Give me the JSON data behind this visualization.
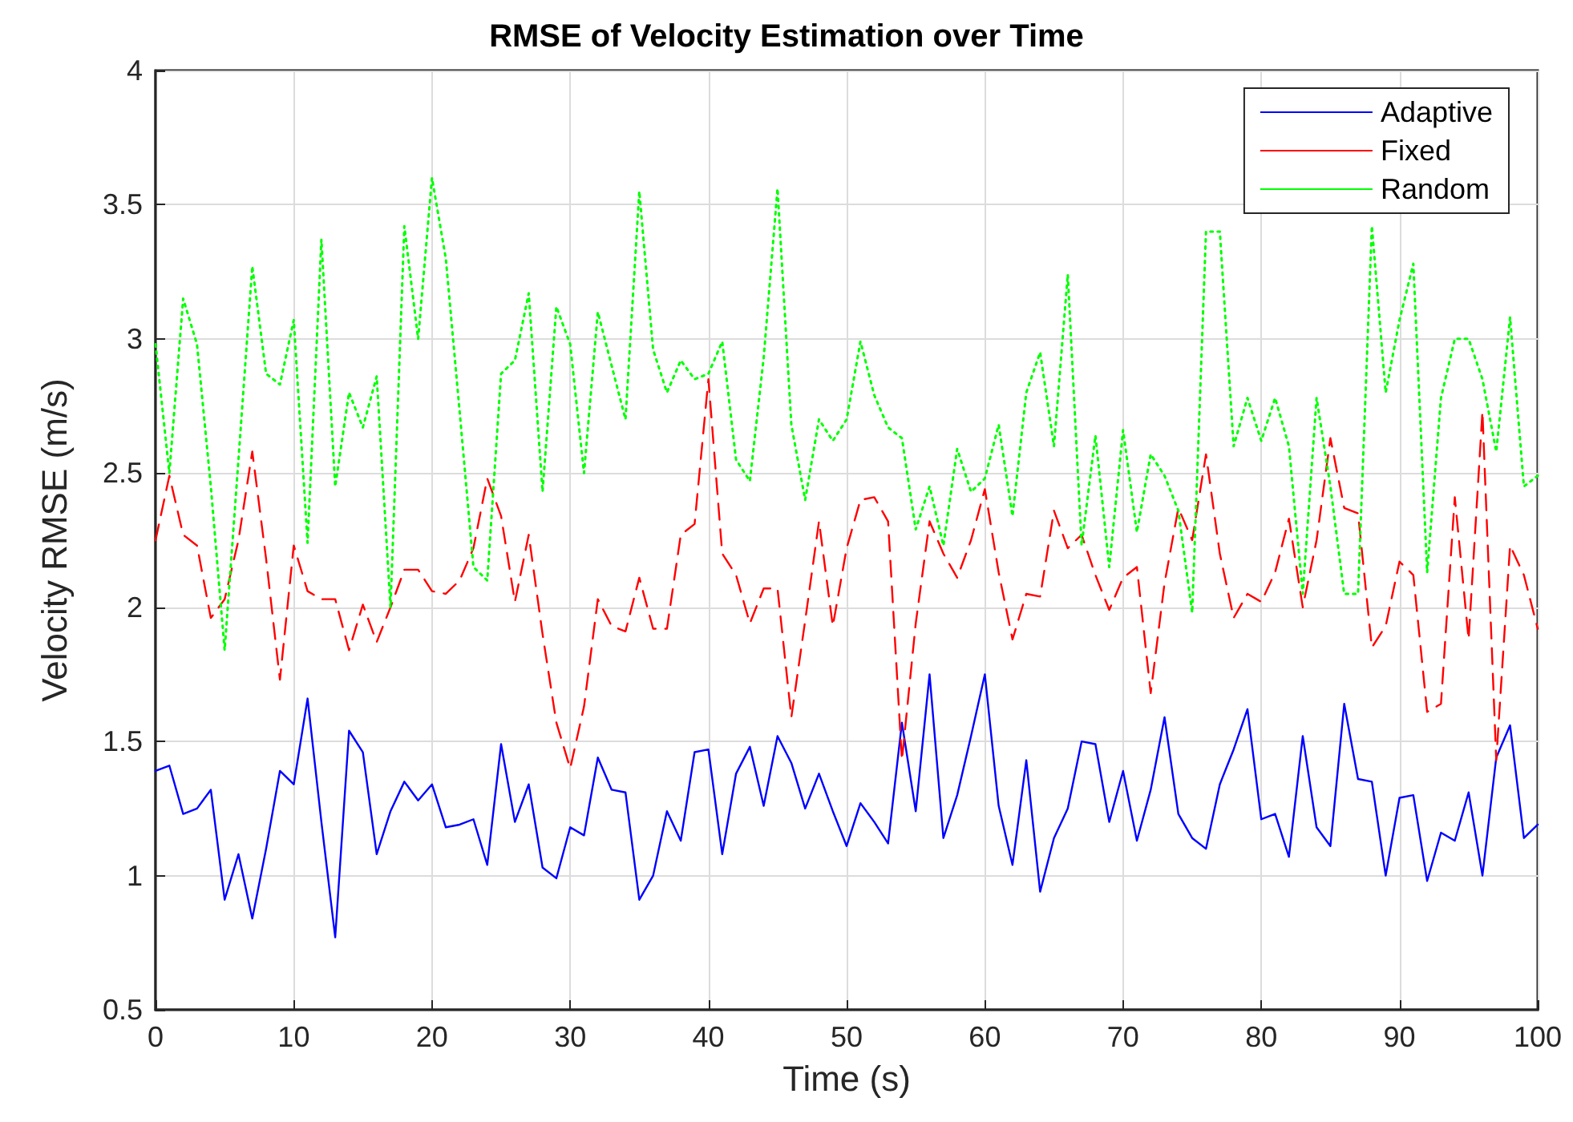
{
  "chart_data": {
    "type": "line",
    "title": "RMSE of Velocity Estimation over Time",
    "xlabel": "Time (s)",
    "ylabel": "Velocity RMSE (m/s)",
    "x": [
      0,
      1,
      2,
      3,
      4,
      5,
      6,
      7,
      8,
      9,
      10,
      11,
      12,
      13,
      14,
      15,
      16,
      17,
      18,
      19,
      20,
      21,
      22,
      23,
      24,
      25,
      26,
      27,
      28,
      29,
      30,
      31,
      32,
      33,
      34,
      35,
      36,
      37,
      38,
      39,
      40,
      41,
      42,
      43,
      44,
      45,
      46,
      47,
      48,
      49,
      50,
      51,
      52,
      53,
      54,
      55,
      56,
      57,
      58,
      59,
      60,
      61,
      62,
      63,
      64,
      65,
      66,
      67,
      68,
      69,
      70,
      71,
      72,
      73,
      74,
      75,
      76,
      77,
      78,
      79,
      80,
      81,
      82,
      83,
      84,
      85,
      86,
      87,
      88,
      89,
      90,
      91,
      92,
      93,
      94,
      95,
      96,
      97,
      98,
      99,
      100
    ],
    "series": [
      {
        "name": "Adaptive",
        "color": "#0000ff",
        "line_style": "solid",
        "values": [
          1.39,
          1.41,
          1.23,
          1.25,
          1.32,
          0.91,
          1.08,
          0.84,
          1.1,
          1.39,
          1.34,
          1.66,
          1.2,
          0.77,
          1.54,
          1.46,
          1.08,
          1.24,
          1.35,
          1.28,
          1.34,
          1.18,
          1.19,
          1.21,
          1.04,
          1.49,
          1.2,
          1.34,
          1.03,
          0.99,
          1.18,
          1.15,
          1.44,
          1.32,
          1.31,
          0.91,
          1.0,
          1.24,
          1.13,
          1.46,
          1.47,
          1.08,
          1.38,
          1.48,
          1.26,
          1.52,
          1.42,
          1.25,
          1.38,
          1.24,
          1.11,
          1.27,
          1.2,
          1.12,
          1.57,
          1.24,
          1.75,
          1.14,
          1.3,
          1.52,
          1.75,
          1.26,
          1.04,
          1.43,
          0.94,
          1.14,
          1.25,
          1.5,
          1.49,
          1.2,
          1.39,
          1.13,
          1.32,
          1.59,
          1.23,
          1.14,
          1.1,
          1.34,
          1.47,
          1.62,
          1.21,
          1.23,
          1.07,
          1.52,
          1.18,
          1.11,
          1.64,
          1.36,
          1.35,
          1.0,
          1.29,
          1.3,
          0.98,
          1.16,
          1.13,
          1.31,
          1.0,
          1.44,
          1.56,
          1.14,
          1.19
        ]
      },
      {
        "name": "Fixed",
        "color": "#ff0000",
        "line_style": "dashed",
        "values": [
          2.25,
          2.49,
          2.27,
          2.23,
          1.96,
          2.03,
          2.25,
          2.58,
          2.18,
          1.73,
          2.23,
          2.06,
          2.03,
          2.03,
          1.84,
          2.01,
          1.87,
          2.0,
          2.14,
          2.14,
          2.06,
          2.05,
          2.1,
          2.22,
          2.48,
          2.34,
          2.02,
          2.27,
          1.9,
          1.57,
          1.4,
          1.63,
          2.03,
          1.93,
          1.91,
          2.11,
          1.92,
          1.92,
          2.27,
          2.31,
          2.85,
          2.2,
          2.12,
          1.94,
          2.07,
          2.07,
          1.59,
          1.95,
          2.32,
          1.93,
          2.22,
          2.4,
          2.41,
          2.32,
          1.43,
          1.94,
          2.32,
          2.2,
          2.11,
          2.25,
          2.44,
          2.13,
          1.88,
          2.05,
          2.04,
          2.36,
          2.22,
          2.27,
          2.12,
          1.99,
          2.11,
          2.15,
          1.68,
          2.09,
          2.37,
          2.25,
          2.57,
          2.2,
          1.96,
          2.05,
          2.02,
          2.13,
          2.33,
          2.0,
          2.25,
          2.63,
          2.37,
          2.35,
          1.85,
          1.93,
          2.17,
          2.12,
          1.61,
          1.64,
          2.41,
          1.88,
          2.73,
          1.43,
          2.23,
          2.12,
          1.92
        ]
      },
      {
        "name": "Random",
        "color": "#00ff00",
        "line_style": "dotted",
        "values": [
          2.98,
          2.5,
          3.15,
          2.98,
          2.45,
          1.84,
          2.55,
          3.27,
          2.87,
          2.83,
          3.07,
          2.24,
          3.37,
          2.45,
          2.8,
          2.67,
          2.86,
          2.0,
          3.42,
          3.0,
          3.6,
          3.3,
          2.73,
          2.15,
          2.1,
          2.87,
          2.92,
          3.17,
          2.43,
          3.12,
          2.98,
          2.5,
          3.1,
          2.9,
          2.7,
          3.55,
          2.96,
          2.8,
          2.92,
          2.85,
          2.87,
          2.99,
          2.55,
          2.47,
          2.93,
          3.56,
          2.68,
          2.4,
          2.7,
          2.62,
          2.7,
          2.99,
          2.79,
          2.67,
          2.63,
          2.29,
          2.45,
          2.23,
          2.59,
          2.43,
          2.48,
          2.68,
          2.34,
          2.8,
          2.95,
          2.6,
          3.24,
          2.23,
          2.64,
          2.15,
          2.66,
          2.28,
          2.57,
          2.49,
          2.36,
          1.98,
          3.4,
          3.4,
          2.6,
          2.78,
          2.62,
          2.78,
          2.6,
          2.05,
          2.78,
          2.45,
          2.05,
          2.05,
          3.42,
          2.8,
          3.07,
          3.28,
          2.13,
          2.78,
          3.0,
          3.0,
          2.85,
          2.58,
          3.08,
          2.45,
          2.49
        ]
      }
    ],
    "xlim": [
      0,
      100
    ],
    "xticks": [
      0,
      10,
      20,
      30,
      40,
      50,
      60,
      70,
      80,
      90,
      100
    ],
    "ylim": [
      0.5,
      4
    ],
    "yticks": [
      0.5,
      1,
      1.5,
      2,
      2.5,
      3,
      3.5,
      4
    ],
    "grid": true,
    "legend": "top right",
    "marker": "none"
  }
}
